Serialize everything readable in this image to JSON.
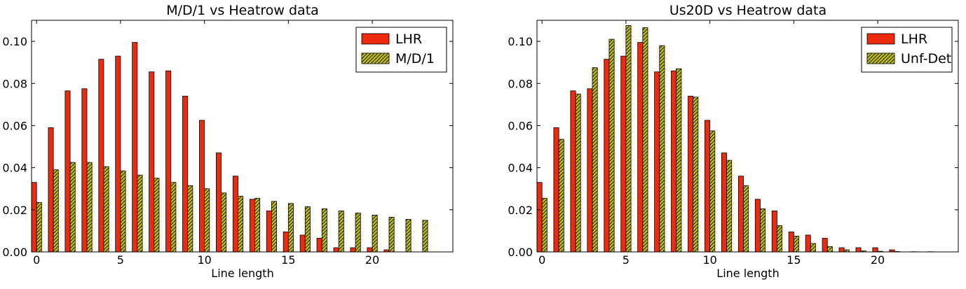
{
  "chart_data": [
    {
      "type": "bar",
      "title": "M/D/1 vs Heatrow data",
      "xlabel": "Line length",
      "ylabel": "",
      "xlim": [
        -0.3,
        24.8
      ],
      "ylim": [
        0,
        0.11
      ],
      "xticks": [
        0,
        5,
        10,
        15,
        20
      ],
      "xtick_labels": [
        "0",
        "5",
        "10",
        "15",
        "20"
      ],
      "yticks": [
        0.0,
        0.02,
        0.04,
        0.06,
        0.08,
        0.1
      ],
      "ytick_labels": [
        "0.00",
        "0.02",
        "0.04",
        "0.06",
        "0.08",
        "0.10"
      ],
      "grid": false,
      "legend_position": "top-right",
      "categories": [
        0,
        1,
        2,
        3,
        4,
        5,
        6,
        7,
        8,
        9,
        10,
        11,
        12,
        13,
        14,
        15,
        16,
        17,
        18,
        19,
        20,
        21,
        22,
        23
      ],
      "series": [
        {
          "name": "LHR",
          "color": "#ee2a0d",
          "hatch": false,
          "values": [
            0.033,
            0.059,
            0.0765,
            0.0775,
            0.0915,
            0.093,
            0.0995,
            0.0855,
            0.086,
            0.074,
            0.0625,
            0.047,
            0.036,
            0.025,
            0.0195,
            0.0095,
            0.008,
            0.0065,
            0.002,
            0.002,
            0.002,
            0.001,
            0,
            0
          ]
        },
        {
          "name": "M/D/1",
          "color": "#bfbf10",
          "hatch": true,
          "values": [
            0.0235,
            0.039,
            0.0425,
            0.0425,
            0.0405,
            0.0385,
            0.0365,
            0.035,
            0.033,
            0.0315,
            0.03,
            0.028,
            0.0265,
            0.0255,
            0.024,
            0.023,
            0.0215,
            0.0205,
            0.0195,
            0.0185,
            0.0175,
            0.0165,
            0.0155,
            0.015
          ]
        }
      ]
    },
    {
      "type": "bar",
      "title": "Us20D vs Heatrow data",
      "xlabel": "Line length",
      "ylabel": "",
      "xlim": [
        -0.3,
        24.8
      ],
      "ylim": [
        0,
        0.11
      ],
      "xticks": [
        0,
        5,
        10,
        15,
        20
      ],
      "xtick_labels": [
        "0",
        "5",
        "10",
        "15",
        "20"
      ],
      "yticks": [
        0.0,
        0.02,
        0.04,
        0.06,
        0.08,
        0.1
      ],
      "ytick_labels": [
        "0.00",
        "0.02",
        "0.04",
        "0.06",
        "0.08",
        "0.10"
      ],
      "grid": false,
      "legend_position": "top-right",
      "categories": [
        0,
        1,
        2,
        3,
        4,
        5,
        6,
        7,
        8,
        9,
        10,
        11,
        12,
        13,
        14,
        15,
        16,
        17,
        18,
        19,
        20,
        21,
        22,
        23
      ],
      "series": [
        {
          "name": "LHR",
          "color": "#ee2a0d",
          "hatch": false,
          "values": [
            0.033,
            0.059,
            0.0765,
            0.0775,
            0.0915,
            0.093,
            0.0995,
            0.0855,
            0.086,
            0.074,
            0.0625,
            0.047,
            0.036,
            0.025,
            0.0195,
            0.0095,
            0.008,
            0.0065,
            0.002,
            0.002,
            0.002,
            0.001,
            0,
            0
          ]
        },
        {
          "name": "Unf-Det",
          "color": "#bfbf10",
          "hatch": true,
          "values": [
            0.0255,
            0.0535,
            0.075,
            0.0875,
            0.101,
            0.1075,
            0.1065,
            0.098,
            0.087,
            0.0735,
            0.0575,
            0.0435,
            0.0315,
            0.0205,
            0.0125,
            0.0075,
            0.004,
            0.0025,
            0.001,
            0.0005,
            0.0003,
            0.0002,
            0.0001,
            0.0001
          ]
        }
      ]
    }
  ]
}
